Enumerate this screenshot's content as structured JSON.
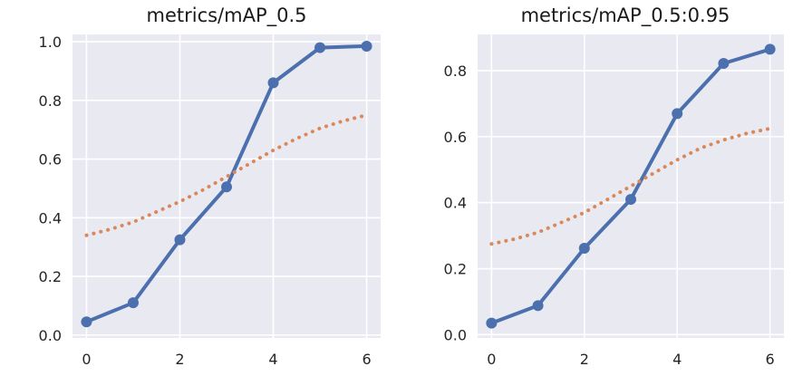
{
  "chart_data": [
    {
      "type": "line",
      "title": "metrics/mAP_0.5",
      "xlim": [
        -0.3,
        6.3
      ],
      "ylim": [
        -0.01,
        1.025
      ],
      "xticks": [
        0,
        2,
        4,
        6
      ],
      "yticks": [
        0.0,
        0.2,
        0.4,
        0.6,
        0.8,
        1.0
      ],
      "ytick_labels": [
        "0.0",
        "0.2",
        "0.4",
        "0.6",
        "0.8",
        "1.0"
      ],
      "grid": true,
      "series": [
        {
          "style": "solid",
          "color": "#4c6fae",
          "markers": true,
          "x": [
            0,
            1,
            2,
            3,
            4,
            5,
            6
          ],
          "y": [
            0.045,
            0.11,
            0.325,
            0.505,
            0.86,
            0.98,
            0.985
          ]
        },
        {
          "style": "dotted",
          "color": "#d9885a",
          "markers": false,
          "x": [
            0,
            0.5,
            1,
            1.5,
            2,
            2.5,
            3,
            3.5,
            4,
            4.5,
            5,
            5.5,
            6
          ],
          "y": [
            0.34,
            0.36,
            0.385,
            0.42,
            0.455,
            0.495,
            0.54,
            0.585,
            0.63,
            0.67,
            0.705,
            0.73,
            0.75
          ]
        }
      ]
    },
    {
      "type": "line",
      "title": "metrics/mAP_0.5:0.95",
      "xlim": [
        -0.3,
        6.3
      ],
      "ylim": [
        -0.01,
        0.91
      ],
      "xticks": [
        0,
        2,
        4,
        6
      ],
      "yticks": [
        0.0,
        0.2,
        0.4,
        0.6,
        0.8
      ],
      "ytick_labels": [
        "0.0",
        "0.2",
        "0.4",
        "0.6",
        "0.8"
      ],
      "grid": true,
      "series": [
        {
          "style": "solid",
          "color": "#4c6fae",
          "markers": true,
          "x": [
            0,
            1,
            2,
            3,
            4,
            5,
            6
          ],
          "y": [
            0.035,
            0.088,
            0.262,
            0.41,
            0.67,
            0.822,
            0.865
          ]
        },
        {
          "style": "dotted",
          "color": "#d9885a",
          "markers": false,
          "x": [
            0,
            0.5,
            1,
            1.5,
            2,
            2.5,
            3,
            3.5,
            4,
            4.5,
            5,
            5.5,
            6
          ],
          "y": [
            0.275,
            0.29,
            0.31,
            0.34,
            0.37,
            0.41,
            0.45,
            0.49,
            0.53,
            0.565,
            0.59,
            0.61,
            0.625
          ]
        }
      ]
    }
  ]
}
